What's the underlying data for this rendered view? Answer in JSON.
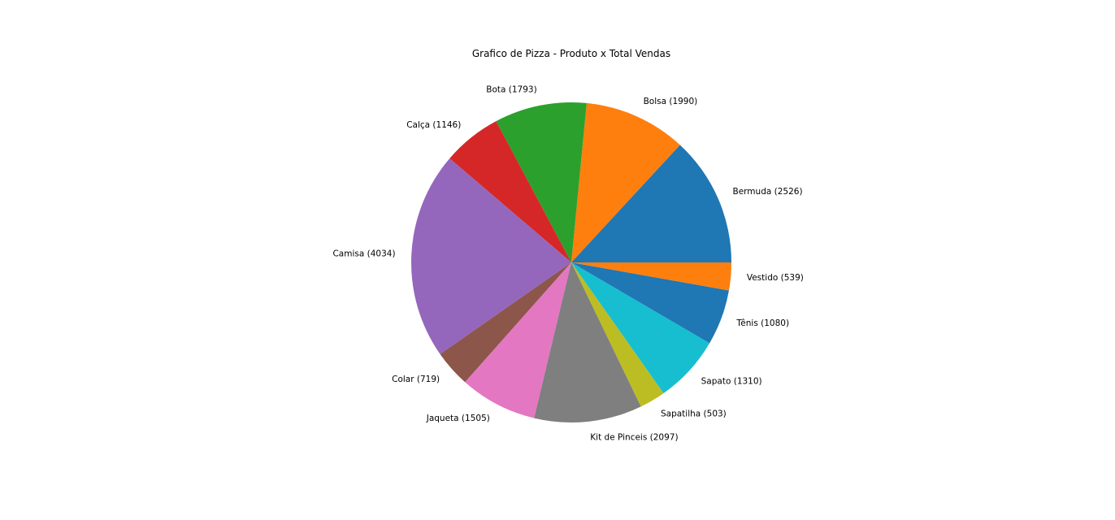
{
  "chart_data": {
    "type": "pie",
    "title": "Grafico de Pizza - Produto x Total Vendas",
    "start_angle_deg": 0,
    "direction": "counterclockwise",
    "slices": [
      {
        "label": "Bermuda (2526)",
        "value": 2526,
        "color": "#1f77b4"
      },
      {
        "label": "Bolsa (1990)",
        "value": 1990,
        "color": "#ff7f0e"
      },
      {
        "label": "Bota (1793)",
        "value": 1793,
        "color": "#2ca02c"
      },
      {
        "label": "Calça (1146)",
        "value": 1146,
        "color": "#d62728"
      },
      {
        "label": "Camisa (4034)",
        "value": 4034,
        "color": "#9467bd"
      },
      {
        "label": "Colar (719)",
        "value": 719,
        "color": "#8c564b"
      },
      {
        "label": "Jaqueta (1505)",
        "value": 1505,
        "color": "#e377c2"
      },
      {
        "label": "Kit de Pinceis (2097)",
        "value": 2097,
        "color": "#7f7f7f"
      },
      {
        "label": "Sapatilha (503)",
        "value": 503,
        "color": "#bcbd22"
      },
      {
        "label": "Sapato (1310)",
        "value": 1310,
        "color": "#17becf"
      },
      {
        "label": "Tênis (1080)",
        "value": 1080,
        "color": "#1f77b4"
      },
      {
        "label": "Vestido (539)",
        "value": 539,
        "color": "#ff7f0e"
      }
    ]
  }
}
